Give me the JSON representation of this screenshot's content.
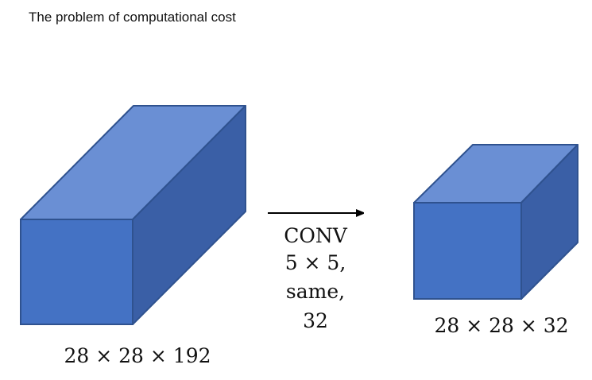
{
  "title": "The problem of computational cost",
  "colors": {
    "cube_front": "#4472c4",
    "cube_top": "#6a8fd4",
    "cube_side": "#3a5fa6",
    "cube_edge": "#2f528f",
    "arrow": "#000000"
  },
  "input_volume": {
    "label": "28 × 28 × 192"
  },
  "operation": {
    "lines": [
      "CONV",
      "5 × 5,",
      "same,",
      "32"
    ]
  },
  "output_volume": {
    "label": "28 × 28 × 32"
  }
}
